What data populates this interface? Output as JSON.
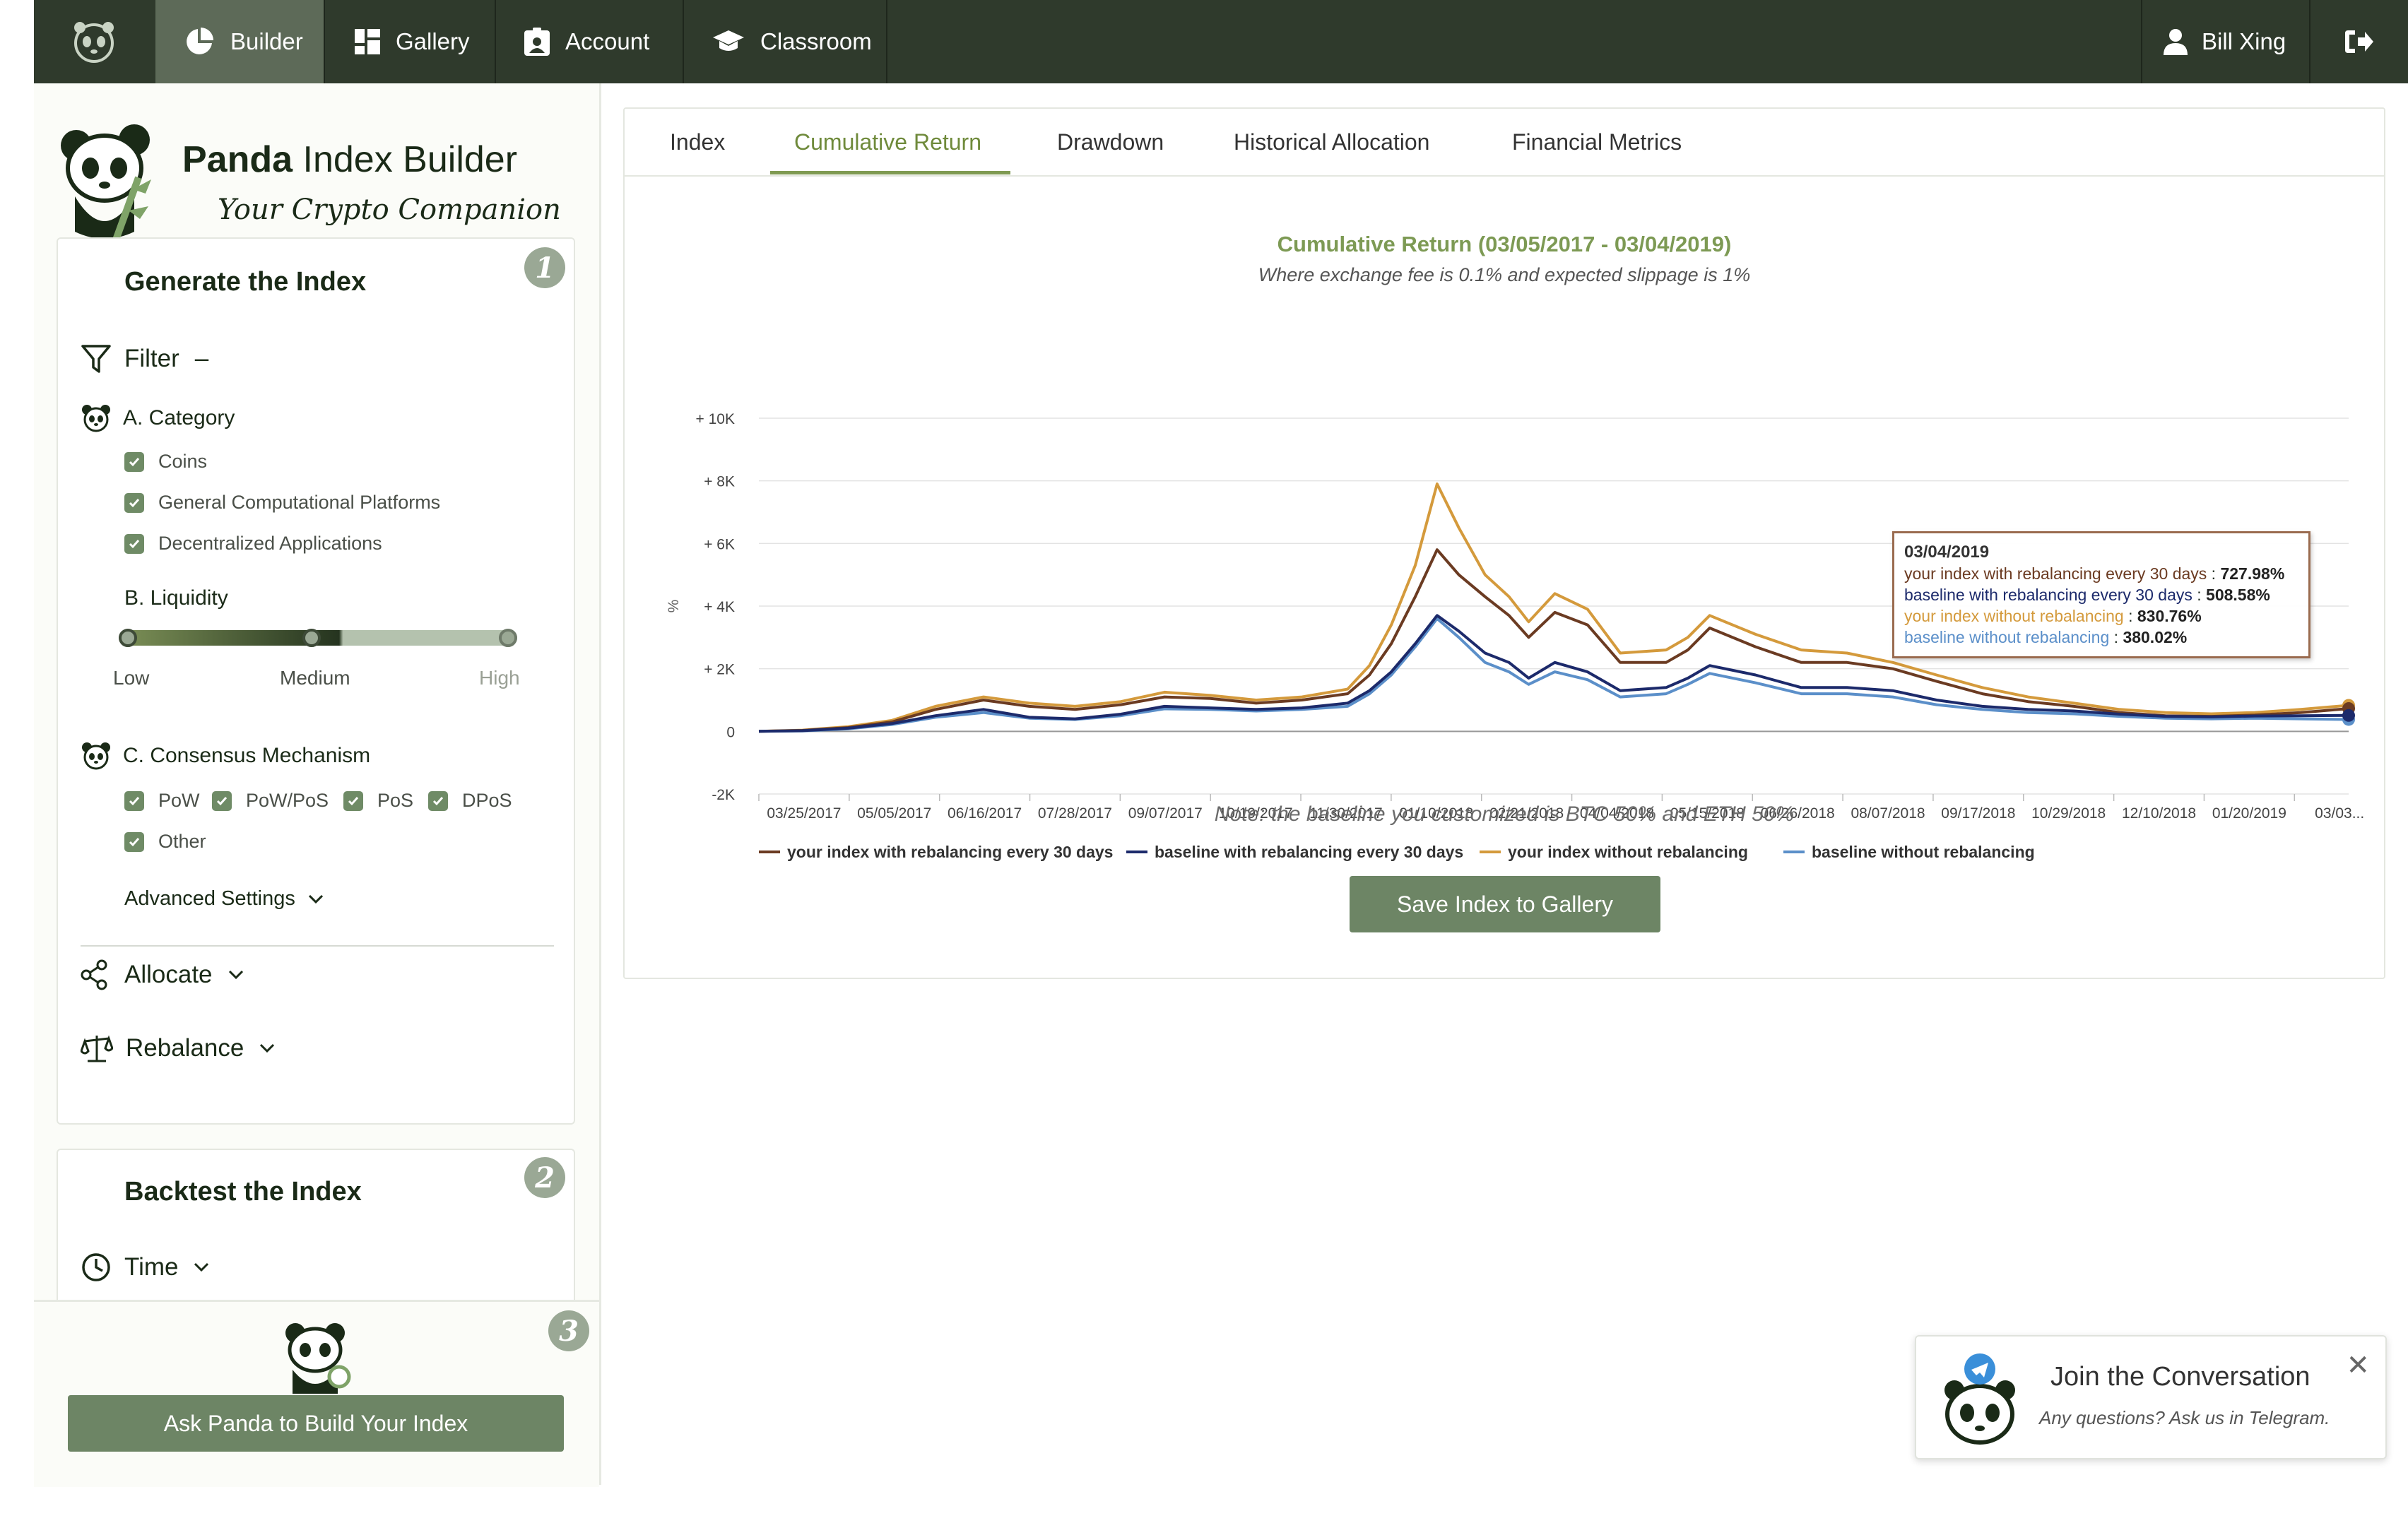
{
  "nav": {
    "items": [
      {
        "label": "Builder",
        "icon": "pie-chart-icon",
        "active": true
      },
      {
        "label": "Gallery",
        "icon": "grid-icon",
        "active": false
      },
      {
        "label": "Account",
        "icon": "id-badge-icon",
        "active": false
      },
      {
        "label": "Classroom",
        "icon": "graduation-cap-icon",
        "active": false
      }
    ],
    "user": "Bill Xing",
    "logout_icon": "logout-icon"
  },
  "brand": {
    "title_bold": "Panda",
    "title_rest": " Index Builder",
    "subtitle": "Your Crypto Companion"
  },
  "generate": {
    "title": "Generate the Index",
    "step": "1",
    "filter_label": "Filter",
    "filter_toggle": "–",
    "category": {
      "label": "A. Category",
      "options": [
        "Coins",
        "General Computational Platforms",
        "Decentralized Applications"
      ]
    },
    "liquidity": {
      "label": "B. Liquidity",
      "low": "Low",
      "medium": "Medium",
      "high": "High",
      "selected_range": [
        "Low",
        "Medium"
      ]
    },
    "consensus": {
      "label": "C. Consensus Mechanism",
      "options": [
        "PoW",
        "PoW/PoS",
        "PoS",
        "DPoS",
        "Other"
      ]
    },
    "advanced": "Advanced Settings",
    "allocate": "Allocate",
    "rebalance": "Rebalance"
  },
  "backtest": {
    "title": "Backtest the Index",
    "step": "2",
    "time": "Time"
  },
  "build": {
    "step": "3",
    "button": "Ask Panda to Build Your Index"
  },
  "tabs": [
    "Index",
    "Cumulative Return",
    "Drawdown",
    "Historical Allocation",
    "Financial Metrics"
  ],
  "active_tab": "Cumulative Return",
  "note": "Note: the baseline you customized is BTC 50% and ETH 50%",
  "save_button": "Save Index to Gallery",
  "tooltip": {
    "date": "03/04/2019",
    "rows": [
      {
        "label": "your index with rebalancing every 30 days",
        "value": "727.98%",
        "color": "#6b3b22"
      },
      {
        "label": "baseline with rebalancing every 30 days",
        "value": "508.58%",
        "color": "#1c2a6b"
      },
      {
        "label": "your index without rebalancing",
        "value": "830.76%",
        "color": "#d49a3c"
      },
      {
        "label": "baseline without rebalancing",
        "value": "380.02%",
        "color": "#5b8fc9"
      }
    ]
  },
  "chat": {
    "title": "Join the Conversation",
    "subtitle": "Any questions? Ask us in Telegram."
  },
  "colors": {
    "nav_bg": "#2f3a2c",
    "nav_active": "#5d6a58",
    "accent": "#6d8565",
    "title_green": "#7d9a54"
  },
  "chart_data": {
    "type": "line",
    "title": "Cumulative Return (03/05/2017 - 03/04/2019)",
    "subtitle": "Where exchange fee is 0.1% and expected slippage is 1%",
    "xlabel": "",
    "ylabel": "%",
    "ylim": [
      -2000,
      10000
    ],
    "y_ticks": [
      -2000,
      0,
      2000,
      4000,
      6000,
      8000,
      10000
    ],
    "y_tick_labels": [
      "-2K",
      "0",
      "+ 2K",
      "+ 4K",
      "+ 6K",
      "+ 8K",
      "+ 10K"
    ],
    "x_tick_labels": [
      "03/25/2017",
      "05/05/2017",
      "06/16/2017",
      "07/28/2017",
      "09/07/2017",
      "10/19/2017",
      "11/30/2017",
      "01/10/2018",
      "02/21/2018",
      "04/04/2018",
      "05/15/2018",
      "06/26/2018",
      "08/07/2018",
      "09/17/2018",
      "10/29/2018",
      "12/10/2018",
      "01/20/2019",
      "03/03..."
    ],
    "x": [
      "2017-03-05",
      "2017-03-25",
      "2017-04-15",
      "2017-05-05",
      "2017-05-25",
      "2017-06-16",
      "2017-07-07",
      "2017-07-28",
      "2017-08-18",
      "2017-09-07",
      "2017-09-28",
      "2017-10-19",
      "2017-11-09",
      "2017-11-30",
      "2017-12-10",
      "2017-12-20",
      "2017-12-31",
      "2018-01-10",
      "2018-01-20",
      "2018-02-01",
      "2018-02-12",
      "2018-02-21",
      "2018-03-05",
      "2018-03-20",
      "2018-04-04",
      "2018-04-25",
      "2018-05-05",
      "2018-05-15",
      "2018-06-05",
      "2018-06-26",
      "2018-07-17",
      "2018-08-07",
      "2018-08-27",
      "2018-09-17",
      "2018-10-08",
      "2018-10-29",
      "2018-11-19",
      "2018-12-10",
      "2018-12-31",
      "2019-01-20",
      "2019-02-10",
      "2019-03-04"
    ],
    "legend_position": "bottom",
    "grid": true,
    "series": [
      {
        "name": "your index with rebalancing every 30 days",
        "color": "#6b3b22",
        "values": [
          0,
          30,
          120,
          300,
          700,
          1000,
          800,
          700,
          850,
          1100,
          1050,
          900,
          1000,
          1200,
          1800,
          2800,
          4300,
          5800,
          5000,
          4300,
          3700,
          3000,
          3800,
          3400,
          2200,
          2200,
          2600,
          3300,
          2700,
          2200,
          2200,
          2000,
          1600,
          1200,
          950,
          800,
          600,
          500,
          480,
          520,
          600,
          728
        ]
      },
      {
        "name": "baseline with rebalancing every 30 days",
        "color": "#1c2a6b",
        "values": [
          0,
          20,
          100,
          250,
          500,
          700,
          450,
          400,
          550,
          800,
          750,
          700,
          750,
          900,
          1300,
          1900,
          2800,
          3700,
          3200,
          2500,
          2200,
          1700,
          2200,
          1900,
          1300,
          1400,
          1700,
          2100,
          1800,
          1400,
          1400,
          1300,
          1000,
          800,
          700,
          650,
          550,
          480,
          460,
          490,
          500,
          509
        ]
      },
      {
        "name": "your index without rebalancing",
        "color": "#d49a3c",
        "values": [
          0,
          40,
          150,
          350,
          800,
          1100,
          900,
          800,
          950,
          1250,
          1150,
          1000,
          1100,
          1350,
          2100,
          3400,
          5300,
          7900,
          6500,
          5000,
          4300,
          3500,
          4400,
          3900,
          2500,
          2600,
          3000,
          3700,
          3100,
          2600,
          2500,
          2200,
          1800,
          1400,
          1100,
          900,
          700,
          600,
          560,
          600,
          700,
          831
        ]
      },
      {
        "name": "baseline without rebalancing",
        "color": "#5b8fc9",
        "values": [
          0,
          15,
          80,
          220,
          450,
          600,
          420,
          380,
          500,
          720,
          700,
          650,
          700,
          800,
          1200,
          1800,
          2700,
          3600,
          3000,
          2200,
          1900,
          1500,
          1900,
          1650,
          1100,
          1200,
          1500,
          1850,
          1550,
          1200,
          1200,
          1100,
          850,
          700,
          600,
          560,
          480,
          420,
          400,
          420,
          400,
          380
        ]
      }
    ]
  }
}
